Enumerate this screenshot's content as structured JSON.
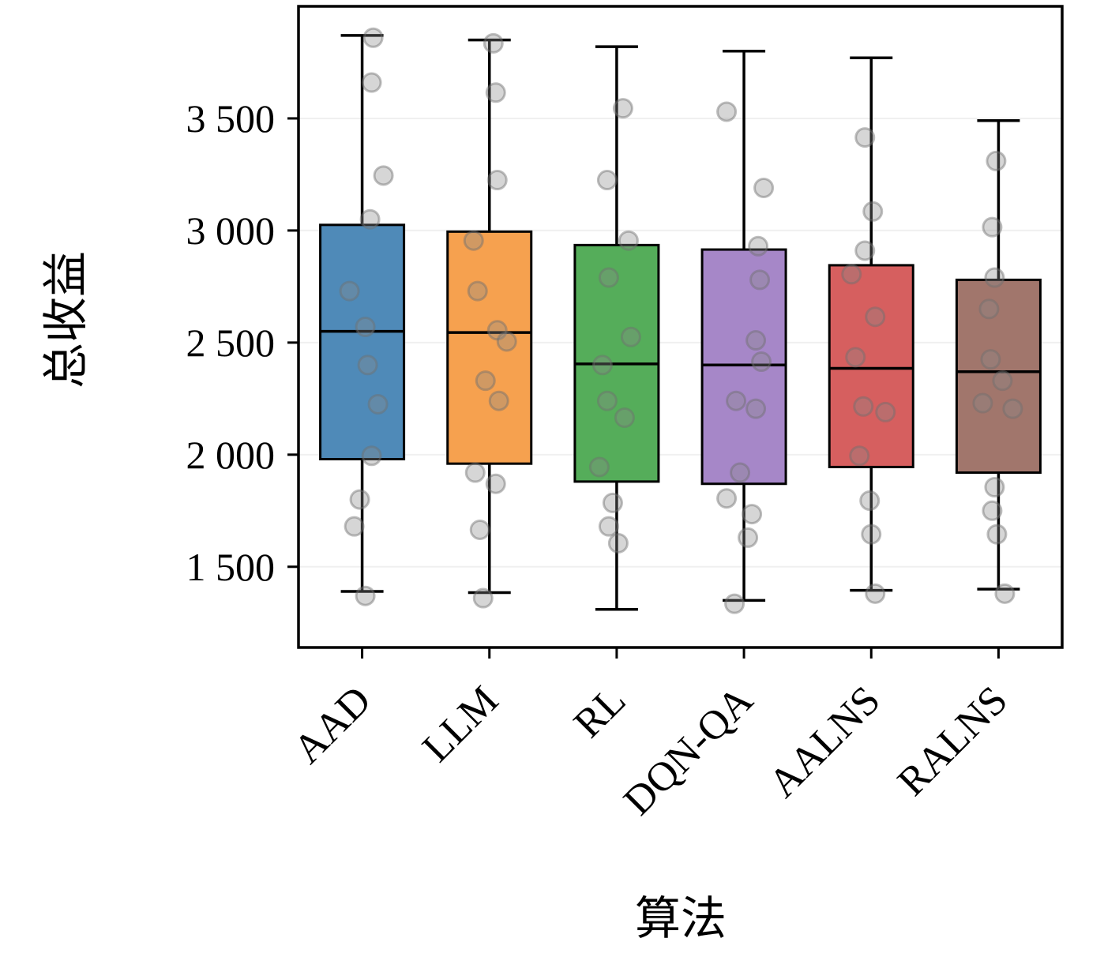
{
  "chart_data": {
    "type": "box",
    "title": "",
    "xlabel": "算法",
    "ylabel": "总收益",
    "ylim": [
      1140,
      4000
    ],
    "grid": "horizontal-faint",
    "legend": "none",
    "yticks": [
      1500,
      2000,
      2500,
      3000,
      3500
    ],
    "ytick_labels": [
      "1 500",
      "2 000",
      "2 500",
      "3 000",
      "3 500"
    ],
    "categories": [
      "AAD",
      "LLM",
      "RL",
      "DQN-QA",
      "AALNS",
      "RALNS"
    ],
    "colors": [
      "#4f8ab8",
      "#f6a14f",
      "#55ad5a",
      "#a687c8",
      "#d65f5f",
      "#a1766c"
    ],
    "box_edge_color": "#000000",
    "point_color": "#8a8a8a",
    "boxes": [
      {
        "label": "AAD",
        "whisker_low": 1390,
        "q1": 1980,
        "median": 2550,
        "q3": 3025,
        "whisker_high": 3870
      },
      {
        "label": "LLM",
        "whisker_low": 1385,
        "q1": 1960,
        "median": 2545,
        "q3": 2995,
        "whisker_high": 3850
      },
      {
        "label": "RL",
        "whisker_low": 1310,
        "q1": 1880,
        "median": 2405,
        "q3": 2935,
        "whisker_high": 3820
      },
      {
        "label": "DQN-QA",
        "whisker_low": 1350,
        "q1": 1870,
        "median": 2400,
        "q3": 2915,
        "whisker_high": 3800
      },
      {
        "label": "AALNS",
        "whisker_low": 1395,
        "q1": 1945,
        "median": 2385,
        "q3": 2845,
        "whisker_high": 3770
      },
      {
        "label": "RALNS",
        "whisker_low": 1400,
        "q1": 1920,
        "median": 2370,
        "q3": 2780,
        "whisker_high": 3490
      }
    ],
    "points": [
      [
        [
          3860,
          14
        ],
        [
          3660,
          12
        ],
        [
          3245,
          27
        ],
        [
          3050,
          10
        ],
        [
          2730,
          -16
        ],
        [
          2570,
          4
        ],
        [
          2400,
          7
        ],
        [
          2225,
          20
        ],
        [
          1995,
          12
        ],
        [
          1800,
          -3
        ],
        [
          1680,
          -10
        ],
        [
          1370,
          4
        ]
      ],
      [
        [
          3835,
          5
        ],
        [
          3615,
          8
        ],
        [
          3225,
          10
        ],
        [
          2955,
          -20
        ],
        [
          2730,
          -15
        ],
        [
          2555,
          10
        ],
        [
          2505,
          22
        ],
        [
          2330,
          -5
        ],
        [
          2240,
          12
        ],
        [
          1920,
          -18
        ],
        [
          1870,
          8
        ],
        [
          1665,
          -12
        ],
        [
          1360,
          -8
        ]
      ],
      [
        [
          3545,
          8
        ],
        [
          3225,
          -12
        ],
        [
          2955,
          15
        ],
        [
          2790,
          -10
        ],
        [
          2525,
          18
        ],
        [
          2400,
          -18
        ],
        [
          2240,
          -12
        ],
        [
          2165,
          10
        ],
        [
          1945,
          -22
        ],
        [
          1785,
          -5
        ],
        [
          1680,
          -10
        ],
        [
          1605,
          2
        ]
      ],
      [
        [
          3530,
          -22
        ],
        [
          3190,
          25
        ],
        [
          2930,
          18
        ],
        [
          2780,
          20
        ],
        [
          2510,
          15
        ],
        [
          2415,
          22
        ],
        [
          2240,
          -10
        ],
        [
          2205,
          15
        ],
        [
          1920,
          -5
        ],
        [
          1805,
          -22
        ],
        [
          1735,
          10
        ],
        [
          1630,
          5
        ],
        [
          1335,
          -12
        ]
      ],
      [
        [
          3415,
          -8
        ],
        [
          3085,
          2
        ],
        [
          2910,
          -8
        ],
        [
          2805,
          -25
        ],
        [
          2615,
          5
        ],
        [
          2435,
          -20
        ],
        [
          2215,
          -10
        ],
        [
          2190,
          18
        ],
        [
          1995,
          -15
        ],
        [
          1795,
          -2
        ],
        [
          1645,
          0
        ],
        [
          1380,
          5
        ]
      ],
      [
        [
          3310,
          -3
        ],
        [
          3015,
          -8
        ],
        [
          2790,
          -5
        ],
        [
          2650,
          -12
        ],
        [
          2425,
          -10
        ],
        [
          2330,
          5
        ],
        [
          2230,
          -20
        ],
        [
          2205,
          18
        ],
        [
          1855,
          -5
        ],
        [
          1750,
          -8
        ],
        [
          1645,
          -2
        ],
        [
          1380,
          8
        ]
      ]
    ]
  }
}
